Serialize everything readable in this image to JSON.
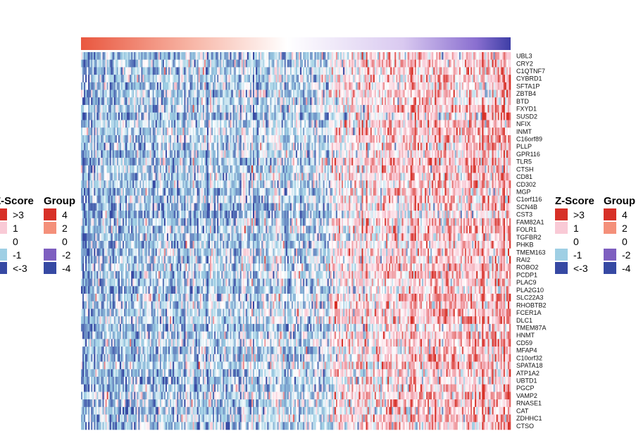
{
  "chart_data": {
    "type": "heatmap",
    "title": "",
    "xlabel": "",
    "ylabel": "",
    "rows": [
      "UBL3",
      "CRY2",
      "C1QTNF7",
      "CYBRD1",
      "SFTA1P",
      "ZBTB4",
      "BTD",
      "FXYD1",
      "SUSD2",
      "NFIX",
      "INMT",
      "C16orf89",
      "PLLP",
      "GPR116",
      "TLR5",
      "CTSH",
      "CD81",
      "CD302",
      "MGP",
      "C1orf116",
      "SCN4B",
      "CST3",
      "FAM82A1",
      "FOLR1",
      "TGFBR2",
      "PHKB",
      "TMEM163",
      "RAI2",
      "ROBO2",
      "PCDP1",
      "PLAC9",
      "PLA2G10",
      "SLC22A3",
      "RHOBTB2",
      "FCER1A",
      "DLC1",
      "TMEM87A",
      "HNMT",
      "CD59",
      "MFAP4",
      "C10orf32",
      "SPATA18",
      "ATP1A2",
      "UBTD1",
      "PGCP",
      "VAMP2",
      "RNASE1",
      "CAT",
      "ZDHHC1",
      "CTSO"
    ],
    "column_count": 300,
    "value_range": [
      -4,
      4
    ],
    "pattern": "columns ordered by group score from high (left) to low (right); left portion predominantly low z-scores (blue), right portion predominantly high z-scores (red)",
    "annotation_bar": {
      "name": "Group",
      "gradient": "continuous from high (red, left) through 0 (white, center) to low (purple/blue, right)"
    },
    "legends": [
      {
        "id": "zscore",
        "title": "Z-Score",
        "entries": [
          {
            "label": ">3",
            "color": "#d73027"
          },
          {
            "label": "1",
            "color": "#f9cad6"
          },
          {
            "label": "0",
            "color": "#ffffff"
          },
          {
            "label": "-1",
            "color": "#9fcfe4"
          },
          {
            "label": "<-3",
            "color": "#3649a3"
          }
        ]
      },
      {
        "id": "group",
        "title": "Group",
        "entries": [
          {
            "label": "4",
            "color": "#d73027"
          },
          {
            "label": "2",
            "color": "#f4907a"
          },
          {
            "label": "0",
            "color": "#ffffff"
          },
          {
            "label": "-2",
            "color": "#7e5fc0"
          },
          {
            "label": "-4",
            "color": "#3649a3"
          }
        ]
      }
    ],
    "legend_placement": "left and right of heatmap (duplicated)",
    "colors": {
      "high": "#d73027",
      "mid_high": "#f9cad6",
      "zero": "#ffffff",
      "mid_low": "#9fcfe4",
      "low": "#3649a3",
      "group_high": "#e9573f",
      "group_low": "#3e3ea6",
      "group_purple": "#8a6fd0"
    }
  }
}
